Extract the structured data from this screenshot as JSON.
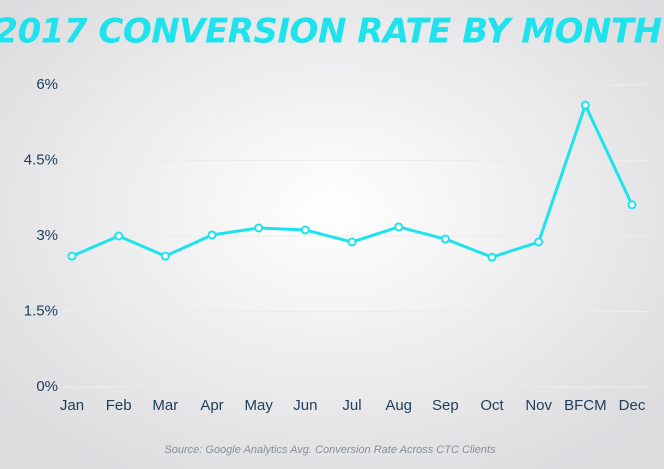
{
  "chart_data": {
    "type": "line",
    "title": "2017 CONVERSION RATE BY MONTH",
    "source": "Source: Google Analytics Avg. Conversion Rate Across CTC Clients",
    "categories": [
      "Jan",
      "Feb",
      "Mar",
      "Apr",
      "May",
      "Jun",
      "Jul",
      "Aug",
      "Sep",
      "Oct",
      "Nov",
      "BFCM",
      "Dec"
    ],
    "values": [
      2.6,
      3.0,
      2.6,
      3.02,
      3.16,
      3.12,
      2.88,
      3.18,
      2.94,
      2.58,
      2.88,
      5.6,
      3.62
    ],
    "color": "#1ee3ec",
    "ylim": [
      0,
      6
    ],
    "yticks": [
      {
        "value": 0,
        "label": "0%"
      },
      {
        "value": 1.5,
        "label": "1.5%"
      },
      {
        "value": 3,
        "label": "3%"
      },
      {
        "value": 4.5,
        "label": "4.5%"
      },
      {
        "value": 6,
        "label": "6%"
      }
    ],
    "grid": true
  }
}
